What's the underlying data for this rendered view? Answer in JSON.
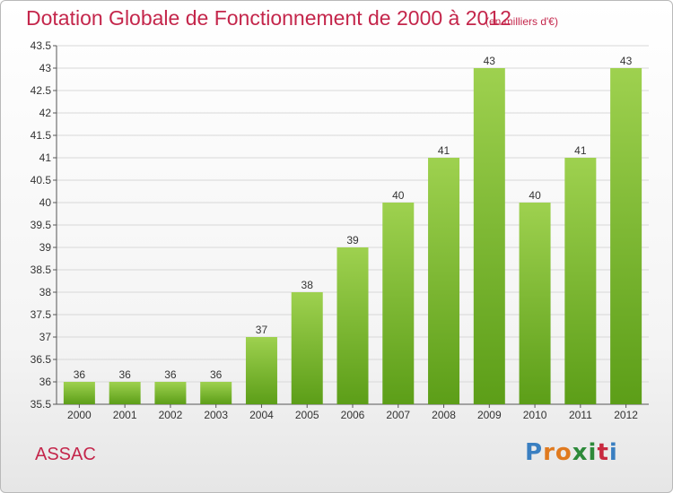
{
  "title": "Dotation Globale de Fonctionnement de 2000 à 2012",
  "subtitle": "(en milliers d'€)",
  "commune": "ASSAC",
  "logo": {
    "letters": [
      "P",
      "r",
      "o",
      "x",
      "i",
      "t",
      "i"
    ],
    "colors": [
      "#3a7fc1",
      "#e07a1f",
      "#e07a1f",
      "#2d8a3a",
      "#2d8a3a",
      "#c8293f",
      "#3a7fc1"
    ]
  },
  "colors": {
    "bar_top": "#9ed14f",
    "bar_bottom": "#5c9e18",
    "title": "#c4264b",
    "grid": "#d8d8d8"
  },
  "chart_data": {
    "type": "bar",
    "categories": [
      "2000",
      "2001",
      "2002",
      "2003",
      "2004",
      "2005",
      "2006",
      "2007",
      "2008",
      "2009",
      "2010",
      "2011",
      "2012"
    ],
    "values": [
      36,
      36,
      36,
      36,
      37,
      38,
      39,
      40,
      41,
      43,
      40,
      41,
      43
    ],
    "ylim": [
      35.5,
      43.5
    ],
    "yticks": [
      "35.5",
      "36",
      "36.5",
      "37",
      "37.5",
      "38",
      "38.5",
      "39",
      "39.5",
      "40",
      "40.5",
      "41",
      "41.5",
      "42",
      "42.5",
      "43",
      "43.5"
    ],
    "grid": true,
    "legend": "none"
  }
}
